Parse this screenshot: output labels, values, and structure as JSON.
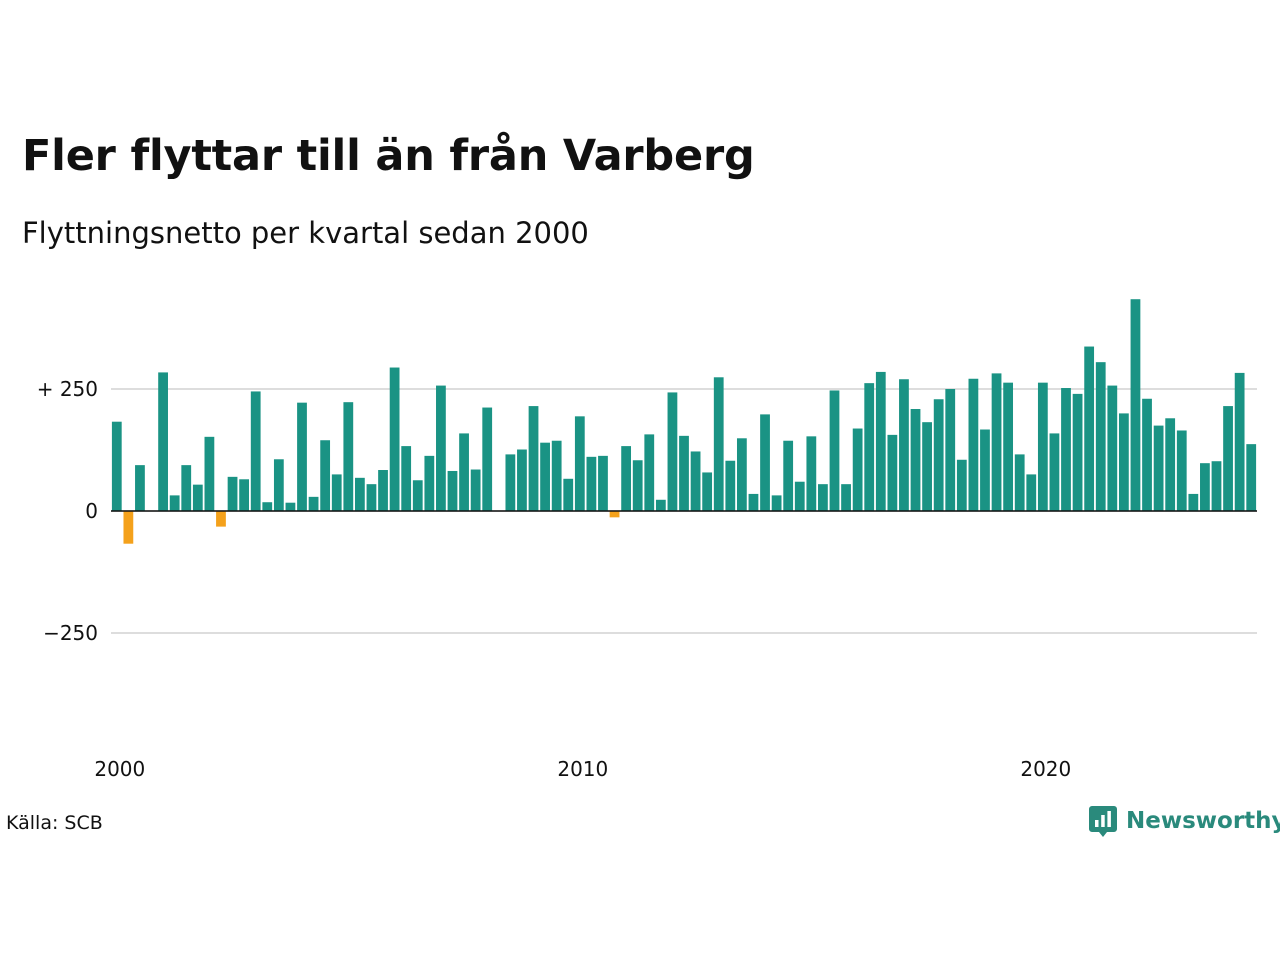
{
  "header": {
    "title": "Fler flyttar till än från Varberg",
    "subtitle": "Flyttningsnetto per kvartal sedan 2000"
  },
  "footer": {
    "source": "Källa: SCB",
    "brand": "Newsworthy"
  },
  "colors": {
    "positive": "#1a9384",
    "negative": "#f4a11b",
    "gridline": "#dddddd",
    "zero_line": "#111111",
    "brand": "#2a8a7c"
  },
  "chart_data": {
    "type": "bar",
    "title": "Fler flyttar till än från Varberg",
    "subtitle": "Flyttningsnetto per kvartal sedan 2000",
    "x_start": "2000 Q1",
    "x_ticks": [
      "2000",
      "2010",
      "2020"
    ],
    "y_ticks": [
      {
        "value": 250,
        "label": "+ 250"
      },
      {
        "value": 0,
        "label": "0"
      },
      {
        "value": -250,
        "label": "−250"
      }
    ],
    "ylim": [
      -400,
      450
    ],
    "grid": true,
    "values": [
      183,
      -67,
      94,
      0,
      284,
      32,
      94,
      54,
      152,
      -32,
      70,
      65,
      245,
      18,
      106,
      17,
      222,
      29,
      145,
      75,
      223,
      68,
      55,
      84,
      294,
      133,
      63,
      113,
      257,
      82,
      159,
      85,
      212,
      0,
      116,
      126,
      215,
      140,
      144,
      66,
      194,
      111,
      113,
      -13,
      133,
      104,
      157,
      23,
      243,
      154,
      122,
      79,
      274,
      103,
      149,
      35,
      198,
      32,
      144,
      60,
      153,
      55,
      247,
      55,
      169,
      262,
      285,
      156,
      270,
      209,
      182,
      229,
      250,
      105,
      271,
      167,
      282,
      263,
      116,
      75,
      263,
      159,
      252,
      240,
      337,
      305,
      257,
      200,
      434,
      230,
      175,
      190,
      165,
      35,
      98,
      102,
      215,
      283,
      137
    ]
  }
}
